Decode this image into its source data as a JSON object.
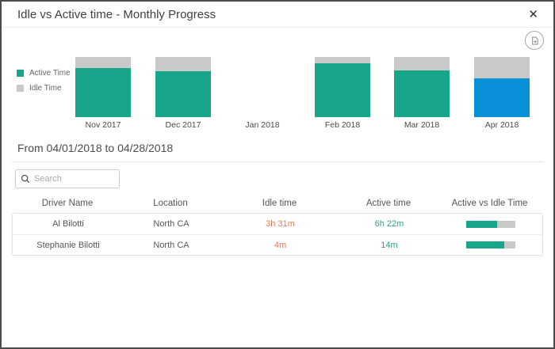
{
  "modal": {
    "title": "Idle vs Active time - Monthly Progress",
    "close_glyph": "✕"
  },
  "chart_data": {
    "type": "bar",
    "stacked": true,
    "title": "Idle vs Active time - Monthly Progress",
    "xlabel": "",
    "ylabel": "",
    "ylim": [
      0,
      100
    ],
    "unit": "percent of month (estimated; no value axis shown)",
    "grid": false,
    "legend_position": "left",
    "categories": [
      "Nov 2017",
      "Dec 2017",
      "Jan 2018",
      "Feb 2018",
      "Mar 2018",
      "Apr 2018"
    ],
    "series": [
      {
        "name": "Active Time",
        "color": "#17a689",
        "values": [
          81,
          76,
          0,
          89,
          78,
          65
        ]
      },
      {
        "name": "Idle Time",
        "color": "#c9c9c9",
        "values": [
          19,
          24,
          0,
          11,
          22,
          35
        ]
      }
    ],
    "highlight": {
      "category": "Apr 2018",
      "color": "#0990d9"
    }
  },
  "period": {
    "label": "From 04/01/2018 to 04/28/2018"
  },
  "search": {
    "placeholder": "Search",
    "value": ""
  },
  "table": {
    "columns": [
      "Driver Name",
      "Location",
      "Idle time",
      "Active time",
      "Active vs Idle Time"
    ],
    "rows": [
      {
        "driver": "Al Bilotti",
        "location": "North CA",
        "idle": "3h 31m",
        "active": "6h 22m",
        "active_pct": 64
      },
      {
        "driver": "Stephanie Bilotti",
        "location": "North CA",
        "idle": "4m",
        "active": "14m",
        "active_pct": 78
      }
    ]
  },
  "colors": {
    "active": "#17a689",
    "idle": "#c9c9c9",
    "selected_month": "#0990d9",
    "idle_value_text": "#e8795c",
    "active_value_text": "#2aa38b",
    "bar_track": "#c9c9c9"
  }
}
